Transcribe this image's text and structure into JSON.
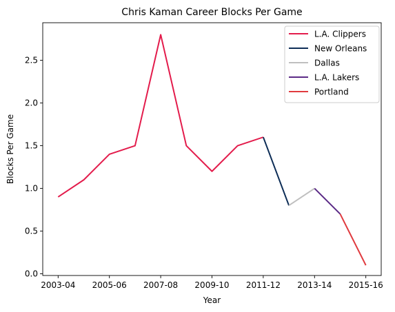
{
  "chart_data": {
    "type": "line",
    "title": "Chris Kaman Career Blocks Per Game",
    "xlabel": "Year",
    "ylabel": "Blocks Per Game",
    "ylim": [
      -0.02,
      2.94
    ],
    "yticks": [
      "0.0",
      "0.5",
      "1.0",
      "1.5",
      "2.0",
      "2.5"
    ],
    "x": [
      "2003-04",
      "2004-05",
      "2005-06",
      "2006-07",
      "2007-08",
      "2008-09",
      "2009-10",
      "2010-11",
      "2011-12",
      "2012-13",
      "2013-14",
      "2014-15",
      "2015-16"
    ],
    "xtick_labels": [
      "2003-04",
      "2005-06",
      "2007-08",
      "2009-10",
      "2011-12",
      "2013-14",
      "2015-16"
    ],
    "series": [
      {
        "name": "L.A. Clippers",
        "color": "#e31b4b",
        "x": [
          "2003-04",
          "2004-05",
          "2005-06",
          "2006-07",
          "2007-08",
          "2008-09",
          "2009-10",
          "2010-11",
          "2011-12"
        ],
        "values": [
          0.9,
          1.1,
          1.4,
          1.5,
          2.8,
          1.5,
          1.2,
          1.5,
          1.6
        ]
      },
      {
        "name": "New Orleans",
        "color": "#0c2c56",
        "x": [
          "2011-12",
          "2012-13"
        ],
        "values": [
          1.6,
          0.8
        ]
      },
      {
        "name": "Dallas",
        "color": "#bfbfbf",
        "x": [
          "2012-13",
          "2013-14"
        ],
        "values": [
          0.8,
          1.0
        ]
      },
      {
        "name": "L.A. Lakers",
        "color": "#5b2a86",
        "x": [
          "2013-14",
          "2014-15"
        ],
        "values": [
          1.0,
          0.7
        ]
      },
      {
        "name": "Portland",
        "color": "#e03a3e",
        "x": [
          "2014-15",
          "2015-16"
        ],
        "values": [
          0.7,
          0.1
        ]
      }
    ],
    "legend_position": "top-right",
    "grid": false
  }
}
